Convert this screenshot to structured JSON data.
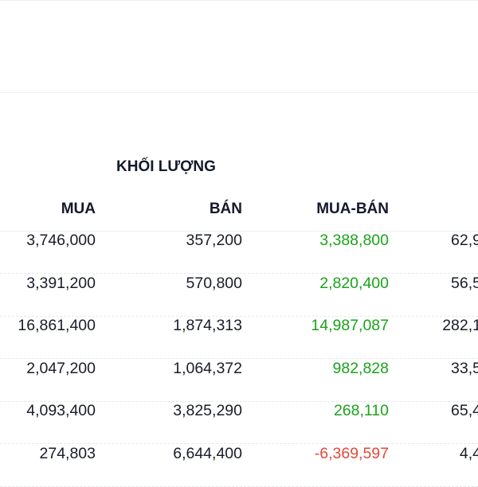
{
  "table": {
    "group_header": "KHỐI LƯỢNG",
    "columns": [
      "MUA",
      "BÁN",
      "MUA-BÁN"
    ],
    "colors": {
      "positive": "#1aa31a",
      "negative": "#e5483a"
    },
    "rows": [
      {
        "buy": "3,746,000",
        "sell": "357,200",
        "net": "3,388,800",
        "next": "62,9"
      },
      {
        "buy": "3,391,200",
        "sell": "570,800",
        "net": "2,820,400",
        "next": "56,5"
      },
      {
        "buy": "16,861,400",
        "sell": "1,874,313",
        "net": "14,987,087",
        "next": "282,1"
      },
      {
        "buy": "2,047,200",
        "sell": "1,064,372",
        "net": "982,828",
        "next": "33,5"
      },
      {
        "buy": "4,093,400",
        "sell": "3,825,290",
        "net": "268,110",
        "next": "65,4"
      },
      {
        "buy": "274,803",
        "sell": "6,644,400",
        "net": "-6,369,597",
        "next": "4,4"
      }
    ]
  }
}
